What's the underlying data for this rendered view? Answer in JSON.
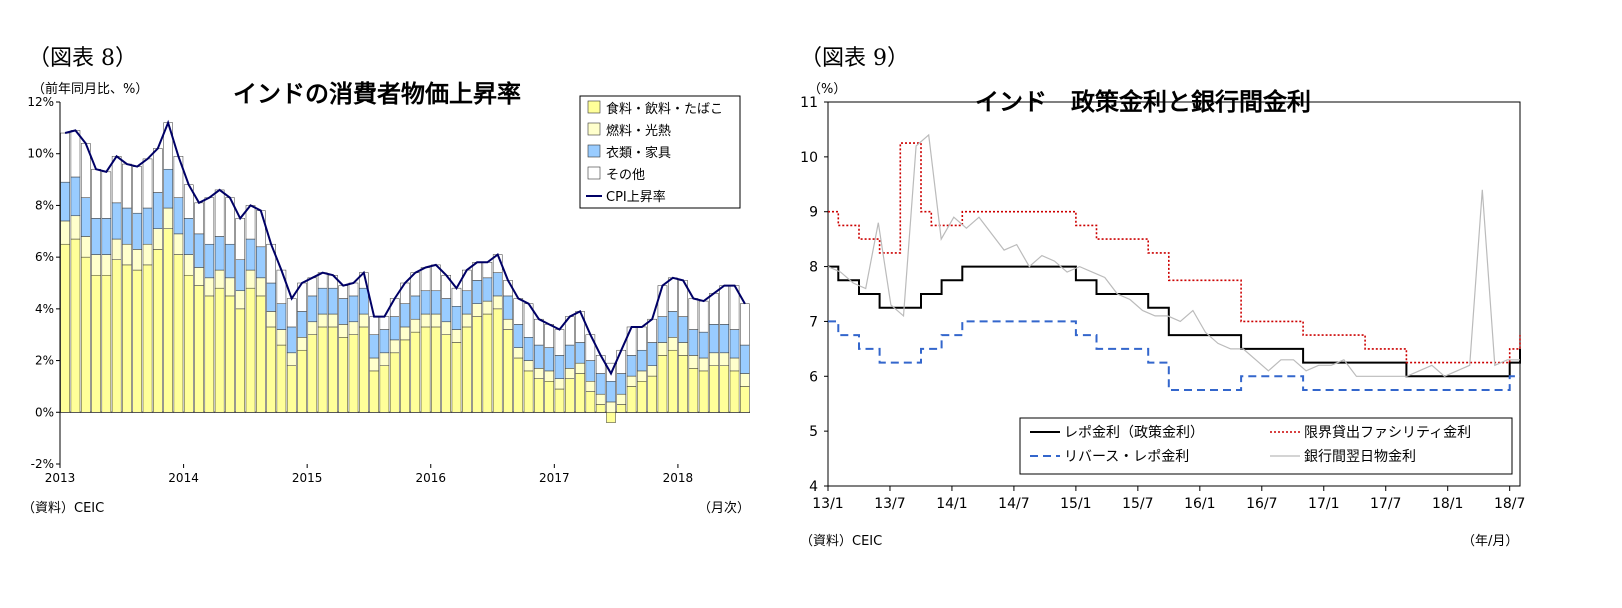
{
  "left": {
    "fig_label": "（図表 8）",
    "unit_label": "（前年同月比、%）",
    "source": "（資料）CEIC",
    "xaxis_unit": "（月次）",
    "chart_data": {
      "type": "bar",
      "stacked": true,
      "title": "インドの消費者物価上昇率",
      "ylim": [
        -2,
        12
      ],
      "yticks": [
        "-2%",
        "0%",
        "2%",
        "4%",
        "6%",
        "8%",
        "10%",
        "12%"
      ],
      "xticks": [
        "2013",
        "2014",
        "2015",
        "2016",
        "2017",
        "2018"
      ],
      "colors": {
        "food": "#ffff99",
        "fuel": "#ffffcc",
        "clothing": "#99ccff",
        "other": "#ffffff",
        "cpi": "#000066"
      },
      "legend": [
        "食料・飲料・たばこ",
        "燃料・光熱",
        "衣類・家具",
        "その他",
        "CPI上昇率"
      ],
      "cpi": [
        10.8,
        10.9,
        10.4,
        9.4,
        9.3,
        9.9,
        9.6,
        9.5,
        9.8,
        10.2,
        11.2,
        9.9,
        8.8,
        8.1,
        8.3,
        8.6,
        8.3,
        7.5,
        8.0,
        7.8,
        6.5,
        5.5,
        4.4,
        5.0,
        5.2,
        5.4,
        5.3,
        4.9,
        5.0,
        5.4,
        3.7,
        3.7,
        4.4,
        5.0,
        5.4,
        5.6,
        5.7,
        5.3,
        4.8,
        5.5,
        5.8,
        5.8,
        6.1,
        5.1,
        4.4,
        4.2,
        3.6,
        3.4,
        3.2,
        3.7,
        3.9,
        3.0,
        2.2,
        1.5,
        2.4,
        3.3,
        3.3,
        3.6,
        4.9,
        5.2,
        5.1,
        4.4,
        4.3,
        4.6,
        4.9,
        4.9,
        4.2
      ],
      "food": [
        6.5,
        6.7,
        6.0,
        5.3,
        5.3,
        5.9,
        5.7,
        5.5,
        5.7,
        6.3,
        7.1,
        6.1,
        5.3,
        4.9,
        4.5,
        4.8,
        4.5,
        4.0,
        4.8,
        4.5,
        3.3,
        2.6,
        1.8,
        2.4,
        3.0,
        3.3,
        3.3,
        2.9,
        3.0,
        3.3,
        1.6,
        1.8,
        2.3,
        2.8,
        3.1,
        3.3,
        3.3,
        3.0,
        2.7,
        3.3,
        3.7,
        3.8,
        4.0,
        3.2,
        2.1,
        1.6,
        1.3,
        1.2,
        0.9,
        1.3,
        1.5,
        0.8,
        0.3,
        -0.4,
        0.3,
        1.0,
        1.2,
        1.4,
        2.2,
        2.4,
        2.2,
        1.7,
        1.6,
        1.8,
        1.8,
        1.6,
        1.0
      ],
      "fuel": [
        0.9,
        0.9,
        0.8,
        0.8,
        0.8,
        0.8,
        0.8,
        0.8,
        0.8,
        0.8,
        0.8,
        0.8,
        0.8,
        0.7,
        0.7,
        0.7,
        0.7,
        0.7,
        0.7,
        0.7,
        0.6,
        0.6,
        0.5,
        0.5,
        0.5,
        0.5,
        0.5,
        0.5,
        0.5,
        0.5,
        0.5,
        0.5,
        0.5,
        0.5,
        0.5,
        0.5,
        0.5,
        0.5,
        0.5,
        0.5,
        0.5,
        0.5,
        0.5,
        0.4,
        0.4,
        0.4,
        0.4,
        0.4,
        0.4,
        0.4,
        0.4,
        0.4,
        0.4,
        0.4,
        0.4,
        0.4,
        0.4,
        0.4,
        0.5,
        0.5,
        0.5,
        0.5,
        0.5,
        0.5,
        0.5,
        0.5,
        0.5
      ],
      "clothing": [
        1.5,
        1.5,
        1.5,
        1.4,
        1.4,
        1.4,
        1.4,
        1.4,
        1.4,
        1.4,
        1.5,
        1.4,
        1.4,
        1.3,
        1.3,
        1.3,
        1.3,
        1.2,
        1.2,
        1.2,
        1.1,
        1.0,
        1.0,
        1.0,
        1.0,
        1.0,
        1.0,
        1.0,
        1.0,
        1.0,
        0.9,
        0.9,
        0.9,
        0.9,
        0.9,
        0.9,
        0.9,
        0.9,
        0.9,
        0.9,
        0.9,
        0.9,
        0.9,
        0.9,
        0.9,
        0.9,
        0.9,
        0.9,
        0.9,
        0.9,
        0.8,
        0.8,
        0.8,
        0.8,
        0.8,
        0.8,
        0.8,
        0.9,
        1.0,
        1.0,
        1.0,
        1.0,
        1.0,
        1.1,
        1.1,
        1.1,
        1.1
      ],
      "other": [
        1.9,
        1.8,
        2.1,
        1.9,
        1.8,
        1.8,
        1.7,
        1.8,
        1.9,
        1.7,
        1.8,
        1.6,
        1.3,
        1.2,
        1.8,
        1.8,
        1.8,
        1.6,
        1.3,
        1.4,
        1.5,
        1.3,
        1.1,
        1.1,
        0.7,
        0.6,
        0.5,
        0.5,
        0.5,
        0.6,
        0.7,
        0.5,
        0.7,
        0.8,
        0.9,
        0.9,
        1.0,
        0.9,
        0.7,
        0.8,
        0.7,
        0.6,
        0.7,
        0.6,
        1.0,
        1.3,
        1.0,
        0.9,
        1.0,
        1.1,
        1.2,
        1.0,
        0.7,
        0.7,
        0.9,
        1.1,
        0.9,
        0.9,
        1.2,
        1.3,
        1.4,
        1.2,
        1.2,
        1.2,
        1.5,
        1.7,
        1.6
      ]
    }
  },
  "right": {
    "fig_label": "（図表 9）",
    "unit_label": "（%）",
    "source": "（資料）CEIC",
    "xaxis_unit": "（年/月）",
    "chart_data": {
      "type": "line",
      "title": "インド　政策金利と銀行間金利",
      "ylim": [
        4,
        11
      ],
      "yticks": [
        "4",
        "5",
        "6",
        "7",
        "8",
        "9",
        "10",
        "11"
      ],
      "xticks": [
        "13/1",
        "13/7",
        "14/1",
        "14/7",
        "15/1",
        "15/7",
        "16/1",
        "16/7",
        "17/1",
        "17/7",
        "18/1",
        "18/7"
      ],
      "colors": {
        "repo": "#000000",
        "reverse": "#3366cc",
        "msf": "#cc0000",
        "call": "#bbbbbb"
      },
      "legend": [
        "レポ金利（政策金利）",
        "リバース・レポ金利",
        "限界貸出ファシリティ金利",
        "銀行間翌日物金利"
      ],
      "series": [
        {
          "key": "repo",
          "name": "レポ金利（政策金利）",
          "steps": [
            [
              "13/1",
              8.0
            ],
            [
              "13/2",
              7.75
            ],
            [
              "13/4",
              7.5
            ],
            [
              "13/6",
              7.25
            ],
            [
              "13/10",
              7.5
            ],
            [
              "13/12",
              7.75
            ],
            [
              "14/2",
              8.0
            ],
            [
              "15/1",
              7.75
            ],
            [
              "15/3",
              7.5
            ],
            [
              "15/8",
              7.25
            ],
            [
              "15/10",
              6.75
            ],
            [
              "16/5",
              6.5
            ],
            [
              "16/11",
              6.25
            ],
            [
              "17/9",
              6.0
            ],
            [
              "18/7",
              6.25
            ],
            [
              "18/9",
              6.5
            ]
          ]
        },
        {
          "key": "reverse",
          "name": "リバース・レポ金利",
          "steps": [
            [
              "13/1",
              7.0
            ],
            [
              "13/2",
              6.75
            ],
            [
              "13/4",
              6.5
            ],
            [
              "13/6",
              6.25
            ],
            [
              "13/10",
              6.5
            ],
            [
              "13/12",
              6.75
            ],
            [
              "14/2",
              7.0
            ],
            [
              "15/1",
              6.75
            ],
            [
              "15/3",
              6.5
            ],
            [
              "15/8",
              6.25
            ],
            [
              "15/10",
              5.75
            ],
            [
              "16/5",
              6.0
            ],
            [
              "16/11",
              5.75
            ],
            [
              "17/9",
              5.75
            ],
            [
              "18/7",
              6.0
            ],
            [
              "18/9",
              6.0
            ]
          ]
        },
        {
          "key": "msf",
          "name": "限界貸出ファシリティ金利",
          "steps": [
            [
              "13/1",
              9.0
            ],
            [
              "13/2",
              8.75
            ],
            [
              "13/4",
              8.5
            ],
            [
              "13/6",
              8.25
            ],
            [
              "13/8",
              10.25
            ],
            [
              "13/10",
              9.0
            ],
            [
              "13/11",
              8.75
            ],
            [
              "14/2",
              9.0
            ],
            [
              "15/1",
              8.75
            ],
            [
              "15/3",
              8.5
            ],
            [
              "15/8",
              8.25
            ],
            [
              "15/10",
              7.75
            ],
            [
              "16/5",
              7.0
            ],
            [
              "16/11",
              6.75
            ],
            [
              "17/5",
              6.5
            ],
            [
              "17/9",
              6.25
            ],
            [
              "18/7",
              6.5
            ],
            [
              "18/9",
              6.75
            ]
          ]
        },
        {
          "key": "call",
          "name": "銀行間翌日物金利",
          "values": [
            8.0,
            7.9,
            7.7,
            7.6,
            8.8,
            7.3,
            7.1,
            10.2,
            10.4,
            8.5,
            8.9,
            8.7,
            8.9,
            8.6,
            8.3,
            8.4,
            8.0,
            8.2,
            8.1,
            7.9,
            8.0,
            7.9,
            7.8,
            7.5,
            7.4,
            7.2,
            7.1,
            7.1,
            7.0,
            7.2,
            6.8,
            6.6,
            6.5,
            6.5,
            6.3,
            6.1,
            6.3,
            6.3,
            6.1,
            6.2,
            6.2,
            6.3,
            6.0,
            6.0,
            6.0,
            6.0,
            6.0,
            6.1,
            6.2,
            6.0,
            6.1,
            6.2,
            9.4,
            6.2,
            6.3,
            6.3
          ]
        }
      ]
    }
  }
}
